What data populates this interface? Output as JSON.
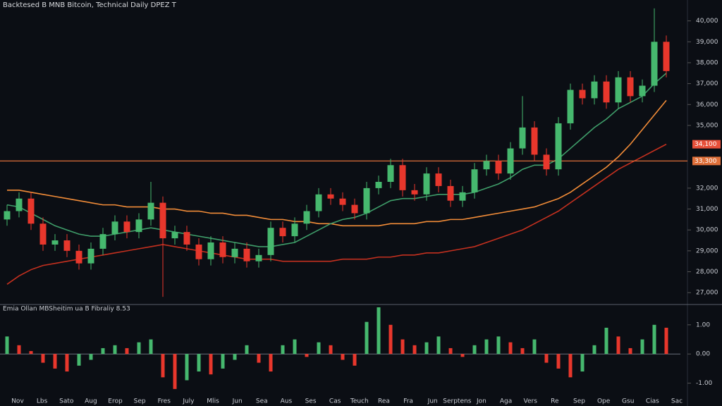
{
  "chart_data": [
    {
      "type": "candlestick",
      "title": "Backtesed B MNB Bitcoin, Technical Daily DPEZ T",
      "open": [
        30500,
        30900,
        31500,
        30300,
        29300,
        29500,
        29000,
        28400,
        29100,
        29800,
        30400,
        29900,
        30500,
        31300,
        29600,
        29900,
        29300,
        28600,
        29400,
        28700,
        29100,
        28500,
        28800,
        30100,
        29700,
        30300,
        30900,
        31700,
        31500,
        31200,
        30800,
        32000,
        32300,
        33100,
        31900,
        31700,
        32700,
        32100,
        31400,
        31800,
        32900,
        33300,
        32700,
        33900,
        34900,
        33600,
        32900,
        35100,
        36700,
        36300,
        37100,
        36100,
        37300,
        36400,
        36900,
        39000
      ],
      "high": [
        31200,
        31800,
        31800,
        30600,
        29800,
        29800,
        29300,
        29400,
        30100,
        30700,
        30700,
        30800,
        32300,
        31600,
        30200,
        30200,
        29600,
        29700,
        29700,
        29400,
        29400,
        29100,
        30400,
        30400,
        30600,
        31200,
        32000,
        32000,
        31800,
        31500,
        32300,
        32600,
        33400,
        33400,
        32200,
        33000,
        33000,
        32400,
        32100,
        33200,
        33600,
        33600,
        34200,
        36400,
        35200,
        33900,
        35400,
        37000,
        37000,
        37400,
        37400,
        37600,
        37600,
        37200,
        40600,
        39300
      ],
      "low": [
        30200,
        30600,
        30000,
        29000,
        29000,
        28700,
        28100,
        28100,
        28800,
        29500,
        29600,
        29600,
        30200,
        26800,
        29300,
        29000,
        28300,
        28300,
        28400,
        28400,
        28200,
        28200,
        28500,
        29400,
        29400,
        30000,
        30600,
        31200,
        30900,
        30500,
        30500,
        31700,
        32000,
        31600,
        31400,
        31400,
        31800,
        31100,
        31100,
        31500,
        32600,
        32400,
        32400,
        33600,
        33300,
        32600,
        32600,
        34800,
        36000,
        36000,
        35800,
        35800,
        36100,
        36100,
        36600,
        37300
      ],
      "close": [
        30900,
        31500,
        30300,
        29300,
        29500,
        29000,
        28400,
        29100,
        29800,
        30400,
        29900,
        30500,
        31300,
        29600,
        29900,
        29300,
        28600,
        29400,
        28700,
        29100,
        28500,
        28800,
        30100,
        29700,
        30300,
        30900,
        31700,
        31500,
        31200,
        30800,
        32000,
        32300,
        33100,
        31900,
        31700,
        32700,
        32100,
        31400,
        31800,
        32900,
        33300,
        32700,
        33900,
        34900,
        33600,
        32900,
        35100,
        36700,
        36300,
        37100,
        36100,
        37300,
        36400,
        36900,
        39000,
        37600
      ],
      "up_color": "#46b86e",
      "down_color": "#e8372c",
      "overlays": [
        {
          "color": "#f28c38",
          "values": [
            31900,
            31900,
            31800,
            31700,
            31600,
            31500,
            31400,
            31300,
            31200,
            31200,
            31100,
            31100,
            31100,
            31000,
            31000,
            30900,
            30900,
            30800,
            30800,
            30700,
            30700,
            30600,
            30500,
            30500,
            30400,
            30400,
            30300,
            30300,
            30200,
            30200,
            30200,
            30200,
            30300,
            30300,
            30300,
            30400,
            30400,
            30500,
            30500,
            30600,
            30700,
            30800,
            30900,
            31000,
            31100,
            31300,
            31500,
            31800,
            32200,
            32600,
            33000,
            33500,
            34100,
            34800,
            35500,
            36200
          ]
        },
        {
          "color": "#3f9e6a",
          "values": [
            31200,
            31100,
            30800,
            30500,
            30200,
            30000,
            29800,
            29700,
            29700,
            29800,
            29900,
            30000,
            30100,
            30000,
            29900,
            29800,
            29700,
            29600,
            29500,
            29400,
            29300,
            29200,
            29200,
            29300,
            29400,
            29700,
            30000,
            30300,
            30500,
            30600,
            30800,
            31100,
            31400,
            31500,
            31500,
            31600,
            31700,
            31700,
            31700,
            31800,
            32000,
            32200,
            32500,
            32900,
            33100,
            33100,
            33400,
            33900,
            34400,
            34900,
            35300,
            35800,
            36100,
            36400,
            37000,
            37500
          ]
        },
        {
          "color": "#c4301f",
          "values": [
            27400,
            27800,
            28100,
            28300,
            28400,
            28500,
            28600,
            28700,
            28800,
            28900,
            29000,
            29100,
            29200,
            29300,
            29200,
            29100,
            29000,
            28900,
            28800,
            28700,
            28600,
            28600,
            28600,
            28500,
            28500,
            28500,
            28500,
            28500,
            28600,
            28600,
            28600,
            28700,
            28700,
            28800,
            28800,
            28900,
            28900,
            29000,
            29100,
            29200,
            29400,
            29600,
            29800,
            30000,
            30300,
            30600,
            30900,
            31300,
            31700,
            32100,
            32500,
            32900,
            33200,
            33500,
            33800,
            34100
          ]
        }
      ],
      "level": {
        "value": 33300,
        "label": "33,300",
        "color": "#e0703a"
      },
      "price_tag": {
        "value": 34100,
        "label": "34,100",
        "color": "#e8503a"
      },
      "ylim": [
        26500,
        41000
      ],
      "yticks": [
        {
          "value": 27000,
          "label": "27,000"
        },
        {
          "value": 28000,
          "label": "28,000"
        },
        {
          "value": 29000,
          "label": "29,000"
        },
        {
          "value": 30000,
          "label": "30,000"
        },
        {
          "value": 31000,
          "label": "31,000"
        },
        {
          "value": 32000,
          "label": "32,000"
        },
        {
          "value": 35000,
          "label": "35,000"
        },
        {
          "value": 36000,
          "label": "36,000"
        },
        {
          "value": 37000,
          "label": "37,000"
        },
        {
          "value": 38000,
          "label": "38,000"
        },
        {
          "value": 39000,
          "label": "39,000"
        },
        {
          "value": 40000,
          "label": "40,000"
        }
      ]
    },
    {
      "type": "bar",
      "title": "Emia Ollan MBSheitim ua B Fibraliy 8.53",
      "values": [
        0.6,
        0.3,
        0.1,
        -0.3,
        -0.5,
        -0.6,
        -0.4,
        -0.2,
        0.2,
        0.3,
        0.2,
        0.4,
        0.5,
        -0.8,
        -1.2,
        -0.9,
        -0.6,
        -0.7,
        -0.5,
        -0.2,
        0.3,
        -0.3,
        -0.6,
        0.3,
        0.5,
        -0.1,
        0.4,
        0.3,
        -0.2,
        -0.4,
        1.1,
        1.6,
        1.0,
        0.5,
        0.3,
        0.4,
        0.6,
        0.2,
        -0.1,
        0.3,
        0.5,
        0.6,
        0.4,
        0.2,
        0.5,
        -0.3,
        -0.5,
        -0.8,
        -0.6,
        0.3,
        0.9,
        0.6,
        0.2,
        0.5,
        1.0,
        0.9
      ],
      "up_color": "#46b86e",
      "down_color": "#e8372c",
      "ylim": [
        -1.3,
        1.6
      ],
      "yticks": [
        {
          "value": 1,
          "label": "1.00"
        },
        {
          "value": 0,
          "label": "0.00"
        },
        {
          "value": -1,
          "label": "-1.00"
        }
      ]
    }
  ],
  "x_axis_labels": [
    "Nov",
    "Lbs",
    "Sato",
    "Aug",
    "Erop",
    "Sep",
    "Fres",
    "July",
    "Mlis",
    "Jun",
    "Sea",
    "Aus",
    "Ses",
    "Cas",
    "Teuch",
    "Rea",
    "Fra",
    "Jun",
    "Serptens",
    "Jon",
    "Aga",
    "Vers",
    "Re",
    "Sep",
    "Ope",
    "Gsu",
    "Cias",
    "Sac"
  ]
}
